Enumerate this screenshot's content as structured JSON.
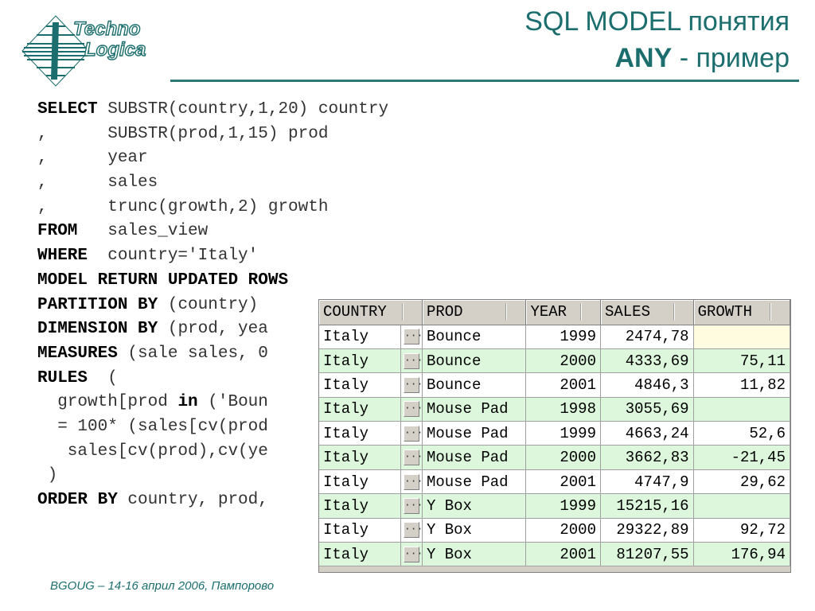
{
  "header": {
    "logo_line1": "Techno",
    "logo_line2": "Logica",
    "title_line1": "SQL MODEL понятия",
    "title_line2_bold": "ANY",
    "title_line2_rest": " - пример"
  },
  "code_lines": [
    {
      "kw": "SELECT",
      "rest": " SUBSTR(country,1,20) country"
    },
    {
      "kw": "",
      "rest": ",      SUBSTR(prod,1,15) prod"
    },
    {
      "kw": "",
      "rest": ",      year"
    },
    {
      "kw": "",
      "rest": ",      sales"
    },
    {
      "kw": "",
      "rest": ",      trunc(growth,2) growth"
    },
    {
      "kw": "FROM",
      "rest": "   sales_view"
    },
    {
      "kw": "WHERE",
      "rest": "  country='Italy'"
    },
    {
      "kw": "MODEL RETURN UPDATED ROWS",
      "rest": ""
    },
    {
      "kw": "PARTITION BY",
      "rest": " (country)"
    },
    {
      "kw": "DIMENSION BY",
      "rest": " (prod, yea"
    },
    {
      "kw": "MEASURES",
      "rest": " (sale sales, 0"
    },
    {
      "kw": "RULES",
      "rest": "  ("
    },
    {
      "kw": "",
      "rest": "  growth[prod ",
      "kw2": "in",
      "rest2": " ('Boun"
    },
    {
      "kw": "",
      "rest": "  = 100* (sales[cv(prod"
    },
    {
      "kw": "",
      "rest": "   sales[cv(prod),cv(ye"
    },
    {
      "kw": "",
      "rest": " )"
    },
    {
      "kw": "ORDER BY",
      "rest": " country, prod,"
    }
  ],
  "grid": {
    "columns": [
      "COUNTRY",
      "PROD",
      "YEAR",
      "SALES",
      "GROWTH"
    ],
    "ellipsis": "···",
    "rows": [
      {
        "country": "Italy",
        "prod": "Bounce",
        "year": "1999",
        "sales": "2474,78",
        "growth": ""
      },
      {
        "country": "Italy",
        "prod": "Bounce",
        "year": "2000",
        "sales": "4333,69",
        "growth": "75,11"
      },
      {
        "country": "Italy",
        "prod": "Bounce",
        "year": "2001",
        "sales": "4846,3",
        "growth": "11,82"
      },
      {
        "country": "Italy",
        "prod": "Mouse Pad",
        "year": "1998",
        "sales": "3055,69",
        "growth": ""
      },
      {
        "country": "Italy",
        "prod": "Mouse Pad",
        "year": "1999",
        "sales": "4663,24",
        "growth": "52,6"
      },
      {
        "country": "Italy",
        "prod": "Mouse Pad",
        "year": "2000",
        "sales": "3662,83",
        "growth": "-21,45"
      },
      {
        "country": "Italy",
        "prod": "Mouse Pad",
        "year": "2001",
        "sales": "4747,9",
        "growth": "29,62"
      },
      {
        "country": "Italy",
        "prod": "Y Box",
        "year": "1999",
        "sales": "15215,16",
        "growth": ""
      },
      {
        "country": "Italy",
        "prod": "Y Box",
        "year": "2000",
        "sales": "29322,89",
        "growth": "92,72"
      },
      {
        "country": "Italy",
        "prod": "Y Box",
        "year": "2001",
        "sales": "81207,55",
        "growth": "176,94"
      }
    ]
  },
  "footer": {
    "text": "BGOUG – 14-16 април 2006, Пампорово"
  },
  "colors": {
    "accent": "#1c6e6e",
    "row_alt": "#ddf7dd",
    "row_empty_growth": "#fffce0"
  }
}
